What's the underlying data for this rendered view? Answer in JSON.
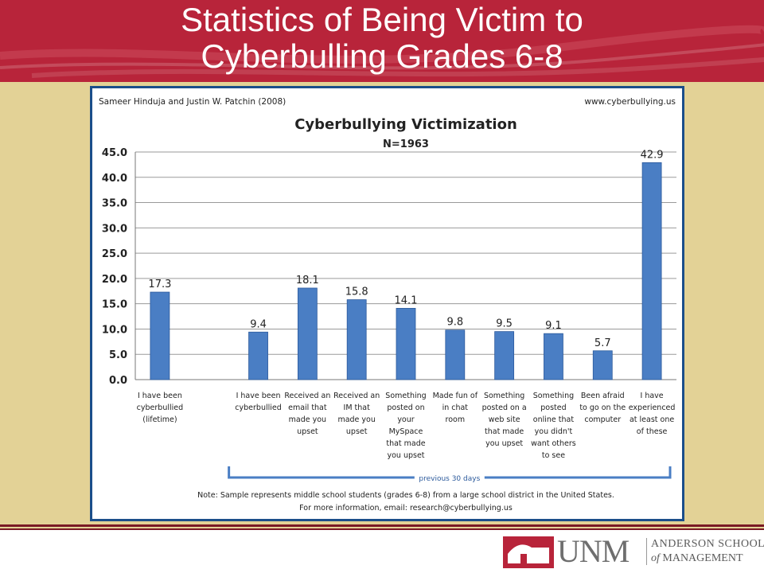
{
  "slide": {
    "title_line1": "Statistics of Being Victim to",
    "title_line2": "Cyberbulling Grades 6-8",
    "banner_color": "#b8243a",
    "background_color": "#e3d296"
  },
  "logo": {
    "unm": "UNM",
    "school_line1": "ANDERSON SCHOOL",
    "school_line2_of": "of",
    "school_line2_rest": " MANAGEMENT"
  },
  "chart_data": {
    "type": "bar",
    "source": "Sameer Hinduja and Justin W. Patchin (2008)",
    "website": "www.cyberbullying.us",
    "title": "Cyberbullying Victimization",
    "subtitle": "N=1963",
    "ylim": [
      0,
      45
    ],
    "yticks": [
      "0.0",
      "5.0",
      "10.0",
      "15.0",
      "20.0",
      "25.0",
      "30.0",
      "35.0",
      "40.0",
      "45.0"
    ],
    "grid": true,
    "bar_color": "#4a7ec4",
    "categories": [
      [
        "I have been",
        "cyberbullied",
        "(lifetime)"
      ],
      [],
      [
        "I have been",
        "cyberbullied"
      ],
      [
        "Received an",
        "email that",
        "made you",
        "upset"
      ],
      [
        "Received an",
        "IM that",
        "made you",
        "upset"
      ],
      [
        "Something",
        "posted on",
        "your",
        "MySpace",
        "that made",
        "you upset"
      ],
      [
        "Made fun of",
        "in chat",
        "room"
      ],
      [
        "Something",
        "posted on a",
        "web site",
        "that made",
        "you upset"
      ],
      [
        "Something",
        "posted",
        "online that",
        "you didn't",
        "want others",
        "to see"
      ],
      [
        "Been afraid",
        "to go on the",
        "computer"
      ],
      [
        "I have",
        "experienced",
        "at least one",
        "of these"
      ]
    ],
    "values": [
      17.3,
      null,
      9.4,
      18.1,
      15.8,
      14.1,
      9.8,
      9.5,
      9.1,
      5.7,
      42.9
    ],
    "value_labels": [
      "17.3",
      "",
      "9.4",
      "18.1",
      "15.8",
      "14.1",
      "9.8",
      "9.5",
      "9.1",
      "5.7",
      "42.9"
    ],
    "bracket_label": "previous 30 days",
    "note_line1": "Note: Sample represents middle school students (grades 6-8) from a large school district in the United States.",
    "note_line2": "For more information, email: research@cyberbullying.us"
  }
}
